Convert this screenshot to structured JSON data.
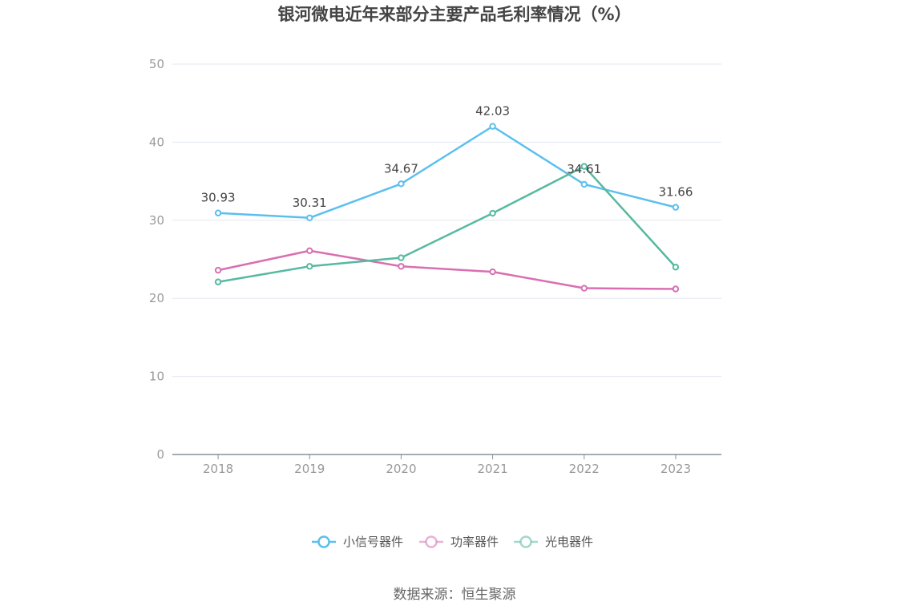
{
  "chart_data": {
    "type": "line",
    "title": "银河微电近年来部分主要产品毛利率情况（%）",
    "categories": [
      "2018",
      "2019",
      "2020",
      "2021",
      "2022",
      "2023"
    ],
    "ylim": [
      0,
      50
    ],
    "yticks": [
      "0",
      "10",
      "20",
      "30",
      "40",
      "50"
    ],
    "grid": true,
    "legend_position": "bottom",
    "series": [
      {
        "name": "小信号器件",
        "color": "#5bbfee",
        "values": [
          30.93,
          30.31,
          34.67,
          42.03,
          34.61,
          31.66
        ],
        "labels": [
          "30.93",
          "30.31",
          "34.67",
          "42.03",
          "34.61",
          "31.66"
        ]
      },
      {
        "name": "功率器件",
        "color": "#d96fb2",
        "values": [
          23.6,
          26.1,
          24.1,
          23.4,
          21.3,
          21.2
        ]
      },
      {
        "name": "光电器件",
        "color": "#57b9a0",
        "values": [
          22.1,
          24.1,
          25.2,
          30.9,
          36.9,
          24.0
        ]
      }
    ],
    "source": "数据来源：恒生聚源"
  }
}
